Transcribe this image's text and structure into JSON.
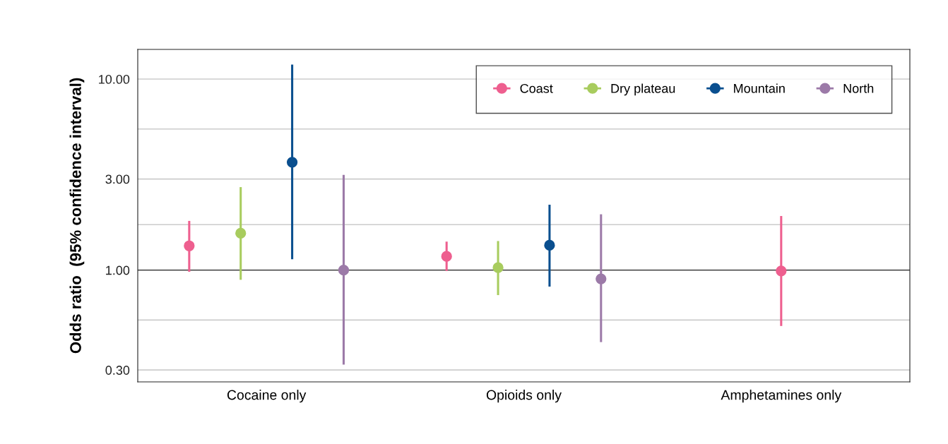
{
  "chart_data": {
    "type": "scatter",
    "ylabel": "Odds ratio  (95% confidence interval)",
    "categories": [
      "Cocaine only",
      "Opioids only",
      "Amphetamines only"
    ],
    "series": [
      {
        "name": "Coast",
        "color": "#ee5f8f",
        "values": [
          1.34,
          1.18,
          0.99
        ],
        "errors": [
          [
            0.98,
            1.81
          ],
          [
            0.99,
            1.41
          ],
          [
            0.51,
            1.92
          ]
        ]
      },
      {
        "name": "Dry plateau",
        "color": "#a8cc5e",
        "values": [
          1.56,
          1.03,
          null
        ],
        "errors": [
          [
            0.89,
            2.72
          ],
          [
            0.74,
            1.42
          ],
          null
        ]
      },
      {
        "name": "Mountain",
        "color": "#0a4f8f",
        "values": [
          3.67,
          1.35,
          null
        ],
        "errors": [
          [
            1.14,
            11.9
          ],
          [
            0.82,
            2.2
          ],
          null
        ]
      },
      {
        "name": "North",
        "color": "#9c7aa8",
        "values": [
          1.0,
          0.9,
          null
        ],
        "errors": [
          [
            0.32,
            3.15
          ],
          [
            0.42,
            1.96
          ],
          null
        ]
      }
    ],
    "log": "y",
    "ylim": [
      0.26,
      14.3
    ],
    "yticks": [
      {
        "value": 0.3,
        "label": "0.30"
      },
      {
        "value": 0.548,
        "label": null
      },
      {
        "value": 1,
        "label": "1.00"
      },
      {
        "value": 1.73,
        "label": null
      },
      {
        "value": 3,
        "label": "3.00"
      },
      {
        "value": 5.48,
        "label": null
      },
      {
        "value": 10,
        "label": "10.00"
      }
    ],
    "ref_lines": [
      {
        "axis": "y",
        "value": 1,
        "color": "#333333"
      }
    ],
    "grid": "y",
    "legend": "top right",
    "marker": "circle"
  }
}
